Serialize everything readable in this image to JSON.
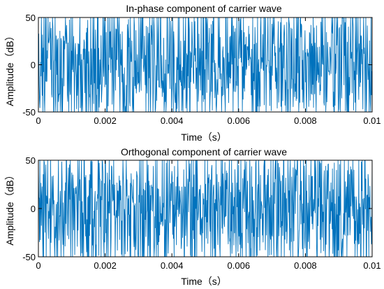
{
  "colors": {
    "line": "#0072BD",
    "axes": "#000000",
    "background": "#ffffff"
  },
  "chart_data": [
    {
      "type": "line",
      "title": "In-phase component of carrier wave",
      "xlabel": "Time（s）",
      "ylabel": "Amplitude（dB）",
      "xlim": [
        0,
        0.01
      ],
      "ylim": [
        -50,
        50
      ],
      "xticks": [
        0,
        0.002,
        0.004,
        0.006,
        0.008,
        0.01
      ],
      "xtick_labels": [
        "0",
        "0.002",
        "0.004",
        "0.006",
        "0.008",
        "0.01"
      ],
      "yticks": [
        -50,
        0,
        50
      ],
      "ytick_labels": [
        "-50",
        "0",
        "50"
      ],
      "grid": false,
      "series": [
        {
          "signal": "noise-like, approximately within [-48, 48]"
        }
      ]
    },
    {
      "type": "line",
      "title": "Orthogonal component of carrier wave",
      "xlabel": "Time（s）",
      "ylabel": "Amplitude（dB）",
      "xlim": [
        0,
        0.01
      ],
      "ylim": [
        -50,
        50
      ],
      "xticks": [
        0,
        0.002,
        0.004,
        0.006,
        0.008,
        0.01
      ],
      "xtick_labels": [
        "0",
        "0.002",
        "0.004",
        "0.006",
        "0.008",
        "0.01"
      ],
      "yticks": [
        -50,
        0,
        50
      ],
      "ytick_labels": [
        "-50",
        "0",
        "50"
      ],
      "grid": false,
      "series": [
        {
          "signal": "noise-like, approximately within [-48, 48]"
        }
      ]
    }
  ]
}
